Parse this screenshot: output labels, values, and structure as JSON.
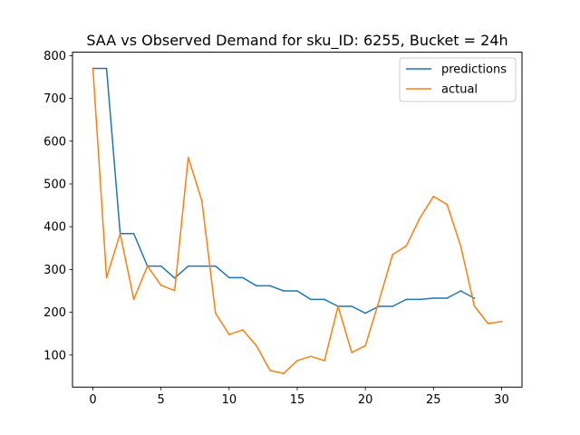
{
  "chart_data": {
    "type": "line",
    "title": "SAA vs Observed Demand for sku_ID: 6255, Bucket = 24h",
    "xlabel": "",
    "ylabel": "",
    "xlim": [
      -1.5,
      31.5
    ],
    "ylim": [
      25,
      808
    ],
    "xticks": [
      0,
      5,
      10,
      15,
      20,
      25,
      30
    ],
    "yticks": [
      100,
      200,
      300,
      400,
      500,
      600,
      700,
      800
    ],
    "grid": false,
    "legend": "top-right",
    "series": [
      {
        "name": "predictions",
        "color": "#1f77b4",
        "x": [
          0,
          1,
          2,
          3,
          4,
          5,
          6,
          7,
          8,
          9,
          10,
          11,
          12,
          13,
          14,
          15,
          16,
          17,
          18,
          19,
          20,
          21,
          22,
          23,
          24,
          25,
          26,
          27,
          28
        ],
        "values": [
          770,
          770,
          384,
          384,
          308,
          308,
          280,
          308,
          308,
          308,
          281,
          281,
          262,
          262,
          250,
          250,
          230,
          230,
          214,
          214,
          198,
          214,
          214,
          230,
          230,
          233,
          233,
          250,
          233
        ]
      },
      {
        "name": "actual",
        "color": "#ff7f0e",
        "x": [
          0,
          1,
          2,
          3,
          4,
          5,
          6,
          7,
          8,
          9,
          10,
          11,
          12,
          13,
          14,
          15,
          16,
          17,
          18,
          19,
          20,
          21,
          22,
          23,
          24,
          25,
          26,
          27,
          28,
          29,
          30
        ],
        "values": [
          770,
          281,
          384,
          230,
          308,
          263,
          251,
          562,
          460,
          198,
          148,
          159,
          122,
          64,
          57,
          87,
          97,
          87,
          214,
          106,
          122,
          226,
          335,
          355,
          420,
          471,
          452,
          355,
          215,
          174,
          178
        ]
      }
    ]
  }
}
